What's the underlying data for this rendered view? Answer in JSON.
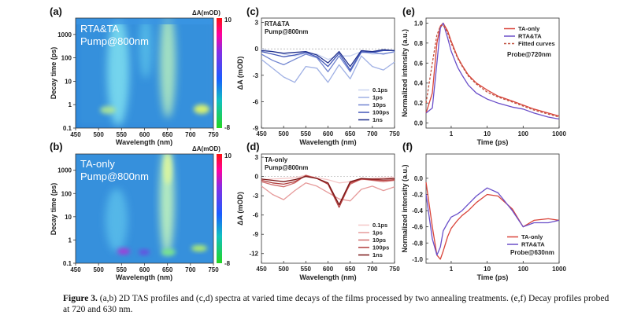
{
  "figure": {
    "caption_label": "Figure 3.",
    "caption_text": " (a,b) 2D TAS profiles and (c,d) spectra at varied time decays of the films processed by two annealing treatments. (e,f) Decay profiles probed at 720 and 630 nm."
  },
  "colors": {
    "map_high": "#ff1010",
    "map_mid": "#1a5cff",
    "map_low": "#2bd62b",
    "rta_lines": [
      "#c9d3f0",
      "#9fb0e4",
      "#7084d0",
      "#4257b8",
      "#1f2f8c"
    ],
    "ta_lines": [
      "#f5c7c7",
      "#e69a9a",
      "#d06c6c",
      "#b03c3c",
      "#7a1616"
    ],
    "decay_ta": "#d9443a",
    "decay_rta": "#6a4fc9",
    "fit": "#c0503f"
  },
  "chart_data": [
    {
      "panel": "(a)",
      "type": "heatmap",
      "title": "RTA&TA",
      "subtitle": "Pump@800nm",
      "xlabel": "Wavelength (nm)",
      "ylabel": "Decay time (ps)",
      "xlim": [
        450,
        750
      ],
      "xticks": [
        "450",
        "500",
        "550",
        "600",
        "650",
        "700",
        "750"
      ],
      "ylim": [
        0.1,
        5000
      ],
      "yscale": "log",
      "yticks": [
        "0.1",
        "1",
        "10",
        "100",
        "1000"
      ],
      "colorbar": {
        "label": "ΔA(mOD)",
        "max": "10",
        "min": "-8"
      },
      "features": [
        {
          "wavelength": 520,
          "level": "strong-negative",
          "time_range": [
            0.5,
            5000
          ]
        },
        {
          "wavelength": 635,
          "level": "strong-negative",
          "time_range": [
            0.5,
            5000
          ]
        },
        {
          "wavelength": 720,
          "level": "positive",
          "time_range": [
            0.5,
            2
          ]
        }
      ]
    },
    {
      "panel": "(b)",
      "type": "heatmap",
      "title": "TA-only",
      "subtitle": "Pump@800nm",
      "xlabel": "Wavelength (nm)",
      "ylabel": "Decay time (ps)",
      "xlim": [
        450,
        750
      ],
      "xticks": [
        "450",
        "500",
        "550",
        "600",
        "650",
        "700",
        "750"
      ],
      "ylim": [
        0.1,
        5000
      ],
      "yscale": "log",
      "yticks": [
        "0.1",
        "1",
        "10",
        "100",
        "1000"
      ],
      "colorbar": {
        "label": "ΔA(mOD)",
        "max": "10",
        "min": "-8"
      },
      "features": [
        {
          "wavelength": 555,
          "level": "positive",
          "time_range": [
            0.3,
            0.8
          ]
        },
        {
          "wavelength": 600,
          "level": "positive",
          "time_range": [
            0.3,
            0.7
          ]
        },
        {
          "wavelength": 630,
          "level": "strong-negative",
          "time_range": [
            0.5,
            5000
          ]
        },
        {
          "wavelength": 720,
          "level": "positive",
          "time_range": [
            0.3,
            1.5
          ]
        }
      ]
    },
    {
      "panel": "(c)",
      "type": "line",
      "title": "RTA&TA",
      "subtitle": "Pump@800nm",
      "xlabel": "Wavelength (nm)",
      "ylabel": "ΔA (mOD)",
      "xlim": [
        450,
        750
      ],
      "ylim": [
        -9,
        3.5
      ],
      "xticks": [
        "450",
        "500",
        "550",
        "600",
        "650",
        "700",
        "750"
      ],
      "yticks": [
        "3",
        "0",
        "-3",
        "-6",
        "-9"
      ],
      "x": [
        450,
        475,
        500,
        525,
        550,
        575,
        600,
        625,
        650,
        675,
        700,
        725,
        750
      ],
      "series": [
        {
          "name": "0.1ps",
          "values": [
            0,
            -0.3,
            -0.6,
            -0.8,
            -0.5,
            -0.6,
            -1.2,
            -0.8,
            -0.8,
            -0.3,
            -0.6,
            -0.5,
            -0.4
          ]
        },
        {
          "name": "1ps",
          "values": [
            -1.2,
            -2.2,
            -3.2,
            -3.8,
            -2.0,
            -2.2,
            -3.8,
            -1.8,
            -3.4,
            -0.8,
            -2.0,
            -2.4,
            -1.5
          ]
        },
        {
          "name": "10ps",
          "values": [
            -0.6,
            -1.3,
            -1.8,
            -1.2,
            -0.6,
            -1.0,
            -2.6,
            -0.8,
            -2.6,
            -0.4,
            -0.4,
            -0.6,
            -0.3
          ]
        },
        {
          "name": "100ps",
          "values": [
            -0.3,
            -0.6,
            -0.9,
            -0.7,
            -0.4,
            -0.9,
            -2.0,
            -0.5,
            -2.4,
            -0.3,
            -0.4,
            -0.2,
            -0.2
          ]
        },
        {
          "name": "1ns",
          "values": [
            -0.2,
            -0.3,
            -0.5,
            -0.4,
            -0.3,
            -0.7,
            -1.6,
            -0.3,
            -2.0,
            -0.2,
            -0.3,
            -0.1,
            -0.2
          ]
        }
      ]
    },
    {
      "panel": "(d)",
      "type": "line",
      "title": "TA-only",
      "subtitle": "Pump@800nm",
      "xlabel": "Wavelength (nm)",
      "ylabel": "ΔA (mOD)",
      "xlim": [
        450,
        750
      ],
      "ylim": [
        -13.5,
        3.5
      ],
      "xticks": [
        "450",
        "500",
        "550",
        "600",
        "650",
        "700",
        "750"
      ],
      "yticks": [
        "3",
        "0",
        "-3",
        "-6",
        "-9",
        "-12"
      ],
      "x": [
        450,
        475,
        500,
        525,
        550,
        575,
        600,
        625,
        650,
        675,
        700,
        725,
        750
      ],
      "series": [
        {
          "name": "0.1ps",
          "values": [
            -0.5,
            -0.4,
            -0.3,
            -0.2,
            0.2,
            -0.2,
            -0.5,
            -1.0,
            -0.8,
            -0.5,
            -0.3,
            -0.2,
            -0.1
          ]
        },
        {
          "name": "1ps",
          "values": [
            -1.5,
            -2.8,
            -3.6,
            -2.2,
            -1.0,
            -1.5,
            -2.5,
            -3.5,
            -3.8,
            -2.0,
            -1.5,
            -2.2,
            -1.6
          ]
        },
        {
          "name": "10ps",
          "values": [
            -0.8,
            -1.3,
            -1.6,
            -1.0,
            0.2,
            -0.3,
            -1.0,
            -4.4,
            -1.2,
            -0.4,
            -0.6,
            -0.8,
            -0.6
          ]
        },
        {
          "name": "100ps",
          "values": [
            -0.6,
            -1.0,
            -1.2,
            -0.8,
            0.1,
            -0.3,
            -1.2,
            -4.8,
            -1.0,
            -0.4,
            -0.5,
            -0.6,
            -0.5
          ]
        },
        {
          "name": "1ns",
          "values": [
            -0.4,
            -0.6,
            -0.8,
            -0.5,
            0.0,
            -0.3,
            -1.0,
            -4.4,
            -0.8,
            -0.3,
            -0.4,
            -0.4,
            -0.3
          ]
        }
      ]
    },
    {
      "panel": "(e)",
      "type": "line",
      "annotation": "Probe@720nm",
      "xlabel": "Time (ps)",
      "ylabel": "Normalized intensity (a.u.)",
      "xscale": "log",
      "xlim": [
        0.2,
        1000
      ],
      "ylim": [
        -0.05,
        1.05
      ],
      "xticks": [
        "1",
        "10",
        "100",
        "1000"
      ],
      "yticks": [
        "0.0",
        "0.2",
        "0.4",
        "0.6",
        "0.8",
        "1.0"
      ],
      "x": [
        0.2,
        0.3,
        0.4,
        0.5,
        0.6,
        0.8,
        1,
        1.5,
        2,
        3,
        5,
        10,
        20,
        50,
        100,
        200,
        500,
        1000
      ],
      "series": [
        {
          "name": "TA-only",
          "values": [
            0.1,
            0.3,
            0.8,
            0.97,
            1.0,
            0.92,
            0.82,
            0.66,
            0.58,
            0.48,
            0.4,
            0.33,
            0.27,
            0.22,
            0.18,
            0.14,
            0.1,
            0.07
          ]
        },
        {
          "name": "RTA&TA",
          "values": [
            0.1,
            0.15,
            0.6,
            0.95,
            1.0,
            0.85,
            0.72,
            0.56,
            0.48,
            0.38,
            0.3,
            0.24,
            0.2,
            0.16,
            0.14,
            0.1,
            0.06,
            0.04
          ]
        },
        {
          "name": "Fitted curves",
          "values": [
            0.2,
            0.6,
            0.88,
            0.97,
            0.98,
            0.9,
            0.8,
            0.65,
            0.57,
            0.47,
            0.39,
            0.31,
            0.26,
            0.21,
            0.17,
            0.13,
            0.09,
            0.06
          ]
        }
      ]
    },
    {
      "panel": "(f)",
      "type": "line",
      "annotation": "Probe@630nm",
      "xlabel": "Time (ps)",
      "ylabel": "Normalized intensity (a.u.)",
      "xscale": "log",
      "xlim": [
        0.2,
        1000
      ],
      "ylim": [
        -1.05,
        0.3
      ],
      "xticks": [
        "1",
        "10",
        "100",
        "1000"
      ],
      "yticks": [
        "0.0",
        "-0.2",
        "-0.4",
        "-0.6",
        "-0.8",
        "-1.0"
      ],
      "x": [
        0.2,
        0.3,
        0.4,
        0.5,
        0.6,
        0.8,
        1,
        1.5,
        2,
        3,
        5,
        10,
        20,
        50,
        100,
        200,
        500,
        1000
      ],
      "series": [
        {
          "name": "TA-only",
          "values": [
            -0.05,
            -0.6,
            -0.95,
            -1.0,
            -0.9,
            -0.72,
            -0.62,
            -0.52,
            -0.46,
            -0.4,
            -0.3,
            -0.2,
            -0.22,
            -0.38,
            -0.6,
            -0.52,
            -0.5,
            -0.52
          ]
        },
        {
          "name": "RTA&TA",
          "values": [
            -0.2,
            -0.75,
            -0.95,
            -0.85,
            -0.65,
            -0.55,
            -0.48,
            -0.44,
            -0.4,
            -0.32,
            -0.22,
            -0.12,
            -0.18,
            -0.4,
            -0.6,
            -0.55,
            -0.55,
            -0.52
          ]
        }
      ]
    }
  ]
}
